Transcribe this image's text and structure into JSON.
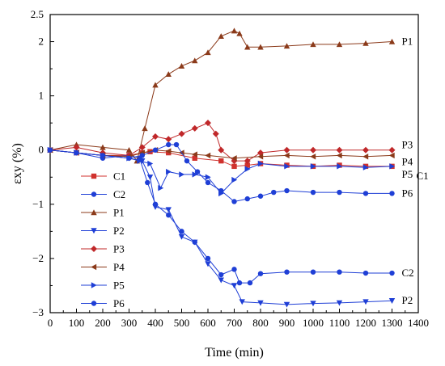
{
  "chart_data": {
    "type": "line",
    "xlabel": "Time (min)",
    "ylabel": "εxy (%)",
    "xlim": [
      0,
      1400
    ],
    "ylim": [
      -3,
      2.5
    ],
    "x_ticks": [
      0,
      100,
      200,
      300,
      400,
      500,
      600,
      700,
      800,
      900,
      1000,
      1100,
      1200,
      1300,
      1400
    ],
    "y_ticks": [
      -3,
      -2,
      -1,
      0,
      1,
      2,
      2.5
    ],
    "y_tick_labels": [
      "−3",
      "−2",
      "−1",
      "0",
      "1",
      "2",
      "2.5"
    ],
    "grid": false,
    "legend_position": "lower-left",
    "series": [
      {
        "name": "C1",
        "color": "#d0312d",
        "marker": "square",
        "points": [
          [
            0,
            0
          ],
          [
            100,
            -0.05
          ],
          [
            200,
            -0.1
          ],
          [
            300,
            -0.1
          ],
          [
            350,
            -0.05
          ],
          [
            380,
            -0.03
          ],
          [
            450,
            -0.05
          ],
          [
            550,
            -0.15
          ],
          [
            650,
            -0.2
          ],
          [
            700,
            -0.3
          ],
          [
            750,
            -0.28
          ],
          [
            800,
            -0.25
          ],
          [
            900,
            -0.28
          ],
          [
            1000,
            -0.3
          ],
          [
            1100,
            -0.28
          ],
          [
            1200,
            -0.3
          ],
          [
            1300,
            -0.3
          ]
        ]
      },
      {
        "name": "C2",
        "color": "#1f3fd6",
        "marker": "circle",
        "points": [
          [
            0,
            0
          ],
          [
            100,
            -0.05
          ],
          [
            200,
            -0.15
          ],
          [
            300,
            -0.1
          ],
          [
            340,
            -0.15
          ],
          [
            370,
            -0.6
          ],
          [
            400,
            -1.0
          ],
          [
            450,
            -1.2
          ],
          [
            500,
            -1.5
          ],
          [
            550,
            -1.7
          ],
          [
            600,
            -2.0
          ],
          [
            650,
            -2.3
          ],
          [
            700,
            -2.2
          ],
          [
            720,
            -2.45
          ],
          [
            760,
            -2.45
          ],
          [
            800,
            -2.28
          ],
          [
            900,
            -2.25
          ],
          [
            1000,
            -2.25
          ],
          [
            1100,
            -2.25
          ],
          [
            1200,
            -2.27
          ],
          [
            1300,
            -2.27
          ]
        ]
      },
      {
        "name": "P1",
        "color": "#8b3a1a",
        "marker": "triangle-up",
        "points": [
          [
            0,
            0
          ],
          [
            100,
            0.1
          ],
          [
            200,
            0.05
          ],
          [
            300,
            0.0
          ],
          [
            330,
            -0.2
          ],
          [
            360,
            0.4
          ],
          [
            400,
            1.2
          ],
          [
            450,
            1.4
          ],
          [
            500,
            1.55
          ],
          [
            550,
            1.65
          ],
          [
            600,
            1.8
          ],
          [
            650,
            2.1
          ],
          [
            700,
            2.2
          ],
          [
            720,
            2.15
          ],
          [
            750,
            1.9
          ],
          [
            800,
            1.9
          ],
          [
            900,
            1.92
          ],
          [
            1000,
            1.95
          ],
          [
            1100,
            1.95
          ],
          [
            1200,
            1.97
          ],
          [
            1300,
            2.0
          ]
        ]
      },
      {
        "name": "P2",
        "color": "#1f3fd6",
        "marker": "triangle-down",
        "points": [
          [
            0,
            0
          ],
          [
            100,
            -0.05
          ],
          [
            200,
            -0.1
          ],
          [
            300,
            -0.15
          ],
          [
            350,
            -0.2
          ],
          [
            380,
            -0.5
          ],
          [
            400,
            -1.05
          ],
          [
            450,
            -1.1
          ],
          [
            500,
            -1.6
          ],
          [
            550,
            -1.7
          ],
          [
            600,
            -2.1
          ],
          [
            650,
            -2.4
          ],
          [
            700,
            -2.5
          ],
          [
            730,
            -2.8
          ],
          [
            800,
            -2.82
          ],
          [
            900,
            -2.85
          ],
          [
            1000,
            -2.83
          ],
          [
            1100,
            -2.82
          ],
          [
            1200,
            -2.8
          ],
          [
            1300,
            -2.78
          ]
        ]
      },
      {
        "name": "P3",
        "color": "#c0282a",
        "marker": "diamond",
        "points": [
          [
            0,
            0
          ],
          [
            100,
            0.05
          ],
          [
            200,
            -0.05
          ],
          [
            300,
            -0.1
          ],
          [
            350,
            0.05
          ],
          [
            400,
            0.25
          ],
          [
            450,
            0.2
          ],
          [
            500,
            0.3
          ],
          [
            550,
            0.4
          ],
          [
            600,
            0.5
          ],
          [
            630,
            0.3
          ],
          [
            650,
            0.0
          ],
          [
            700,
            -0.2
          ],
          [
            750,
            -0.2
          ],
          [
            800,
            -0.05
          ],
          [
            900,
            0.0
          ],
          [
            1000,
            0.0
          ],
          [
            1100,
            0.0
          ],
          [
            1200,
            0.0
          ],
          [
            1300,
            0.0
          ]
        ]
      },
      {
        "name": "P4",
        "color": "#8b3a1a",
        "marker": "triangle-left",
        "points": [
          [
            0,
            0
          ],
          [
            100,
            -0.05
          ],
          [
            200,
            -0.1
          ],
          [
            300,
            -0.12
          ],
          [
            350,
            -0.05
          ],
          [
            400,
            0.0
          ],
          [
            450,
            -0.02
          ],
          [
            500,
            -0.05
          ],
          [
            550,
            -0.08
          ],
          [
            600,
            -0.1
          ],
          [
            700,
            -0.15
          ],
          [
            800,
            -0.12
          ],
          [
            900,
            -0.1
          ],
          [
            1000,
            -0.12
          ],
          [
            1100,
            -0.1
          ],
          [
            1200,
            -0.12
          ],
          [
            1300,
            -0.1
          ]
        ]
      },
      {
        "name": "P5",
        "color": "#1f3fd6",
        "marker": "triangle-right",
        "points": [
          [
            0,
            0
          ],
          [
            100,
            -0.05
          ],
          [
            200,
            -0.1
          ],
          [
            300,
            -0.15
          ],
          [
            340,
            -0.2
          ],
          [
            380,
            -0.25
          ],
          [
            420,
            -0.7
          ],
          [
            450,
            -0.4
          ],
          [
            500,
            -0.45
          ],
          [
            550,
            -0.45
          ],
          [
            600,
            -0.5
          ],
          [
            650,
            -0.8
          ],
          [
            700,
            -0.55
          ],
          [
            750,
            -0.35
          ],
          [
            800,
            -0.25
          ],
          [
            900,
            -0.3
          ],
          [
            1000,
            -0.3
          ],
          [
            1100,
            -0.3
          ],
          [
            1200,
            -0.32
          ],
          [
            1300,
            -0.3
          ]
        ]
      },
      {
        "name": "P6",
        "color": "#1f3fd6",
        "marker": "circle",
        "points": [
          [
            0,
            0
          ],
          [
            100,
            -0.05
          ],
          [
            200,
            -0.1
          ],
          [
            300,
            -0.15
          ],
          [
            350,
            -0.1
          ],
          [
            400,
            0.0
          ],
          [
            450,
            0.1
          ],
          [
            480,
            0.1
          ],
          [
            520,
            -0.2
          ],
          [
            560,
            -0.4
          ],
          [
            600,
            -0.6
          ],
          [
            650,
            -0.75
          ],
          [
            700,
            -0.95
          ],
          [
            750,
            -0.9
          ],
          [
            800,
            -0.85
          ],
          [
            850,
            -0.78
          ],
          [
            900,
            -0.75
          ],
          [
            1000,
            -0.78
          ],
          [
            1100,
            -0.78
          ],
          [
            1200,
            -0.8
          ],
          [
            1300,
            -0.8
          ]
        ]
      }
    ],
    "end_labels": [
      {
        "text": "P1",
        "series": "P1"
      },
      {
        "text": "P3",
        "series": "P3"
      },
      {
        "text": "P4",
        "series": "P4"
      },
      {
        "text": "C1",
        "series": "C1"
      },
      {
        "text": "P5",
        "series": "P5"
      },
      {
        "text": "P6",
        "series": "P6"
      },
      {
        "text": "C2",
        "series": "C2"
      },
      {
        "text": "P2",
        "series": "P2"
      }
    ]
  }
}
